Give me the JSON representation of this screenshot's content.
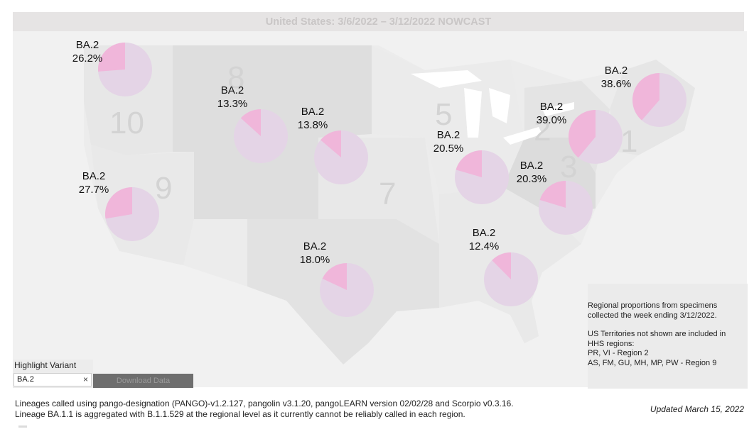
{
  "title": "United States: 3/6/2022 – 3/12/2022 NOWCAST",
  "colors": {
    "ba2_slice": "#f0b6da",
    "other_slice": "#e4d4e6",
    "region_dark": "#e0e0e0",
    "region_mid": "#e6e6e6",
    "region_light": "#ececec",
    "water": "#ffffff"
  },
  "region_numbers": [
    "10",
    "8",
    "5",
    "2",
    "1",
    "9",
    "7",
    "3"
  ],
  "pies": [
    {
      "variant": "BA.2",
      "percent_label": "26.2%",
      "value": 26.2
    },
    {
      "variant": "BA.2",
      "percent_label": "13.3%",
      "value": 13.3
    },
    {
      "variant": "BA.2",
      "percent_label": "13.8%",
      "value": 13.8
    },
    {
      "variant": "BA.2",
      "percent_label": "20.5%",
      "value": 20.5
    },
    {
      "variant": "BA.2",
      "percent_label": "39.0%",
      "value": 39.0
    },
    {
      "variant": "BA.2",
      "percent_label": "38.6%",
      "value": 38.6
    },
    {
      "variant": "BA.2",
      "percent_label": "27.7%",
      "value": 27.7
    },
    {
      "variant": "BA.2",
      "percent_label": "20.3%",
      "value": 20.3
    },
    {
      "variant": "BA.2",
      "percent_label": "18.0%",
      "value": 18.0
    },
    {
      "variant": "BA.2",
      "percent_label": "12.4%",
      "value": 12.4
    }
  ],
  "info_box": {
    "line1": "Regional proportions from specimens",
    "line2": "collected the week ending 3/12/2022.",
    "line3": "US Territories not shown are included in",
    "line4": "HHS regions:",
    "line5": "PR, VI - Region 2",
    "line6": "AS, FM, GU, MH, MP, PW - Region 9"
  },
  "highlight": {
    "label": "Highlight Variant",
    "value": "BA.2",
    "clear_icon": "×"
  },
  "download_label": "Download Data",
  "footer": {
    "line1": "Lineages called using pango-designation (PANGO)-v1.2.127, pangolin v3.1.20, pangoLEARN version 02/02/28 and Scorpio v0.3.16.",
    "line2": "Lineage BA.1.1 is aggregated with B.1.1.529 at the regional level as it currently cannot be reliably called in each region."
  },
  "updated": "Updated March 15, 2022"
}
